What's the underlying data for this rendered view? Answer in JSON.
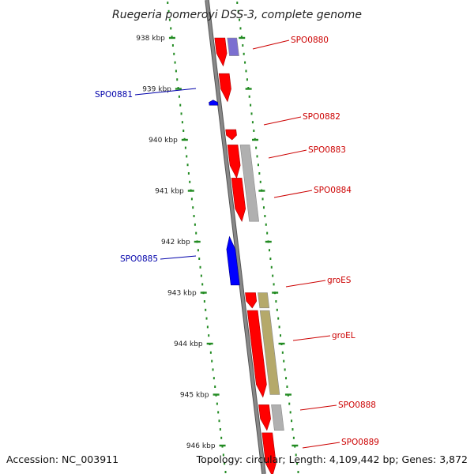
{
  "title": "Ruegeria pomeroyi DSS-3, complete genome",
  "footer": {
    "accession": "Accession: NC_003911",
    "topology": "Topology: circular; Length: 4,109,442 bp; Genes: 3,872"
  },
  "colors": {
    "background": "#ffffff",
    "backbone": "#888888",
    "backbone_edge": "#555555",
    "ruler_dots": "#228b22",
    "forward_gene": "#ff0000",
    "reverse_gene": "#0000ff",
    "hit_grey": "#b0b0b0",
    "hit_olive": "#b5a96a",
    "hit_violet": "#7b6fd0",
    "forward_label": "#cc0000",
    "reverse_label": "#0000aa"
  },
  "ruler": {
    "unit": "kbp",
    "ticks": [
      "938 kbp",
      "939 kbp",
      "940 kbp",
      "941 kbp",
      "942 kbp",
      "943 kbp",
      "944 kbp",
      "945 kbp",
      "946 kbp"
    ]
  },
  "genes": [
    {
      "label": "SPO0880",
      "strand": "forward"
    },
    {
      "label": "SPO0881",
      "strand": "reverse"
    },
    {
      "label": "SPO0882",
      "strand": "forward"
    },
    {
      "label": "SPO0883",
      "strand": "forward"
    },
    {
      "label": "SPO0884",
      "strand": "forward"
    },
    {
      "label": "SPO0885",
      "strand": "reverse"
    },
    {
      "label": "groES",
      "strand": "forward"
    },
    {
      "label": "groEL",
      "strand": "forward"
    },
    {
      "label": "SPO0888",
      "strand": "forward"
    },
    {
      "label": "SPO0889",
      "strand": "forward"
    }
  ],
  "features": [
    {
      "type": "forward-gene",
      "from": 0.0,
      "to": 0.55
    },
    {
      "type": "forward-gene",
      "from": 0.7,
      "to": 1.25
    },
    {
      "type": "reverse-gene",
      "from": 1.22,
      "to": 1.32
    },
    {
      "type": "forward-gene",
      "from": 1.8,
      "to": 2.0
    },
    {
      "type": "forward-gene",
      "from": 2.1,
      "to": 2.75
    },
    {
      "type": "forward-gene",
      "from": 2.75,
      "to": 3.6
    },
    {
      "type": "reverse-gene",
      "from": 3.9,
      "to": 4.85
    },
    {
      "type": "forward-gene",
      "from": 5.0,
      "to": 5.3
    },
    {
      "type": "forward-gene",
      "from": 5.35,
      "to": 7.05
    },
    {
      "type": "forward-gene",
      "from": 7.2,
      "to": 7.7
    },
    {
      "type": "forward-gene",
      "from": 7.75,
      "to": 8.6
    },
    {
      "type": "hit-violet",
      "from": 0.0,
      "to": 0.35
    },
    {
      "type": "hit-grey",
      "from": 2.1,
      "to": 3.6
    },
    {
      "type": "hit-olive",
      "from": 5.0,
      "to": 5.3
    },
    {
      "type": "hit-olive",
      "from": 5.35,
      "to": 7.0
    },
    {
      "type": "hit-grey",
      "from": 7.2,
      "to": 7.7
    }
  ]
}
